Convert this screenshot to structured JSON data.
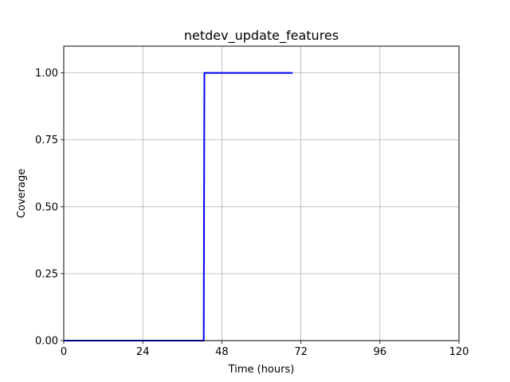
{
  "chart_data": {
    "type": "line",
    "title": "netdev_update_features",
    "xlabel": "Time (hours)",
    "ylabel": "Coverage",
    "xlim": [
      0,
      120
    ],
    "ylim": [
      0,
      1.1
    ],
    "xticks": [
      0,
      24,
      48,
      72,
      96,
      120
    ],
    "yticks": [
      0,
      0.25,
      0.5,
      0.75,
      1.0
    ],
    "xtick_labels": [
      "0",
      "24",
      "48",
      "72",
      "96",
      "120"
    ],
    "ytick_labels": [
      "0.00",
      "0.25",
      "0.50",
      "0.75",
      "1.00"
    ],
    "grid": true,
    "legend": false,
    "series": [
      {
        "color": "#0000ff",
        "x": [
          0,
          42.5,
          42.7,
          69.5
        ],
        "y": [
          0,
          0,
          1.0,
          1.0
        ]
      }
    ]
  }
}
